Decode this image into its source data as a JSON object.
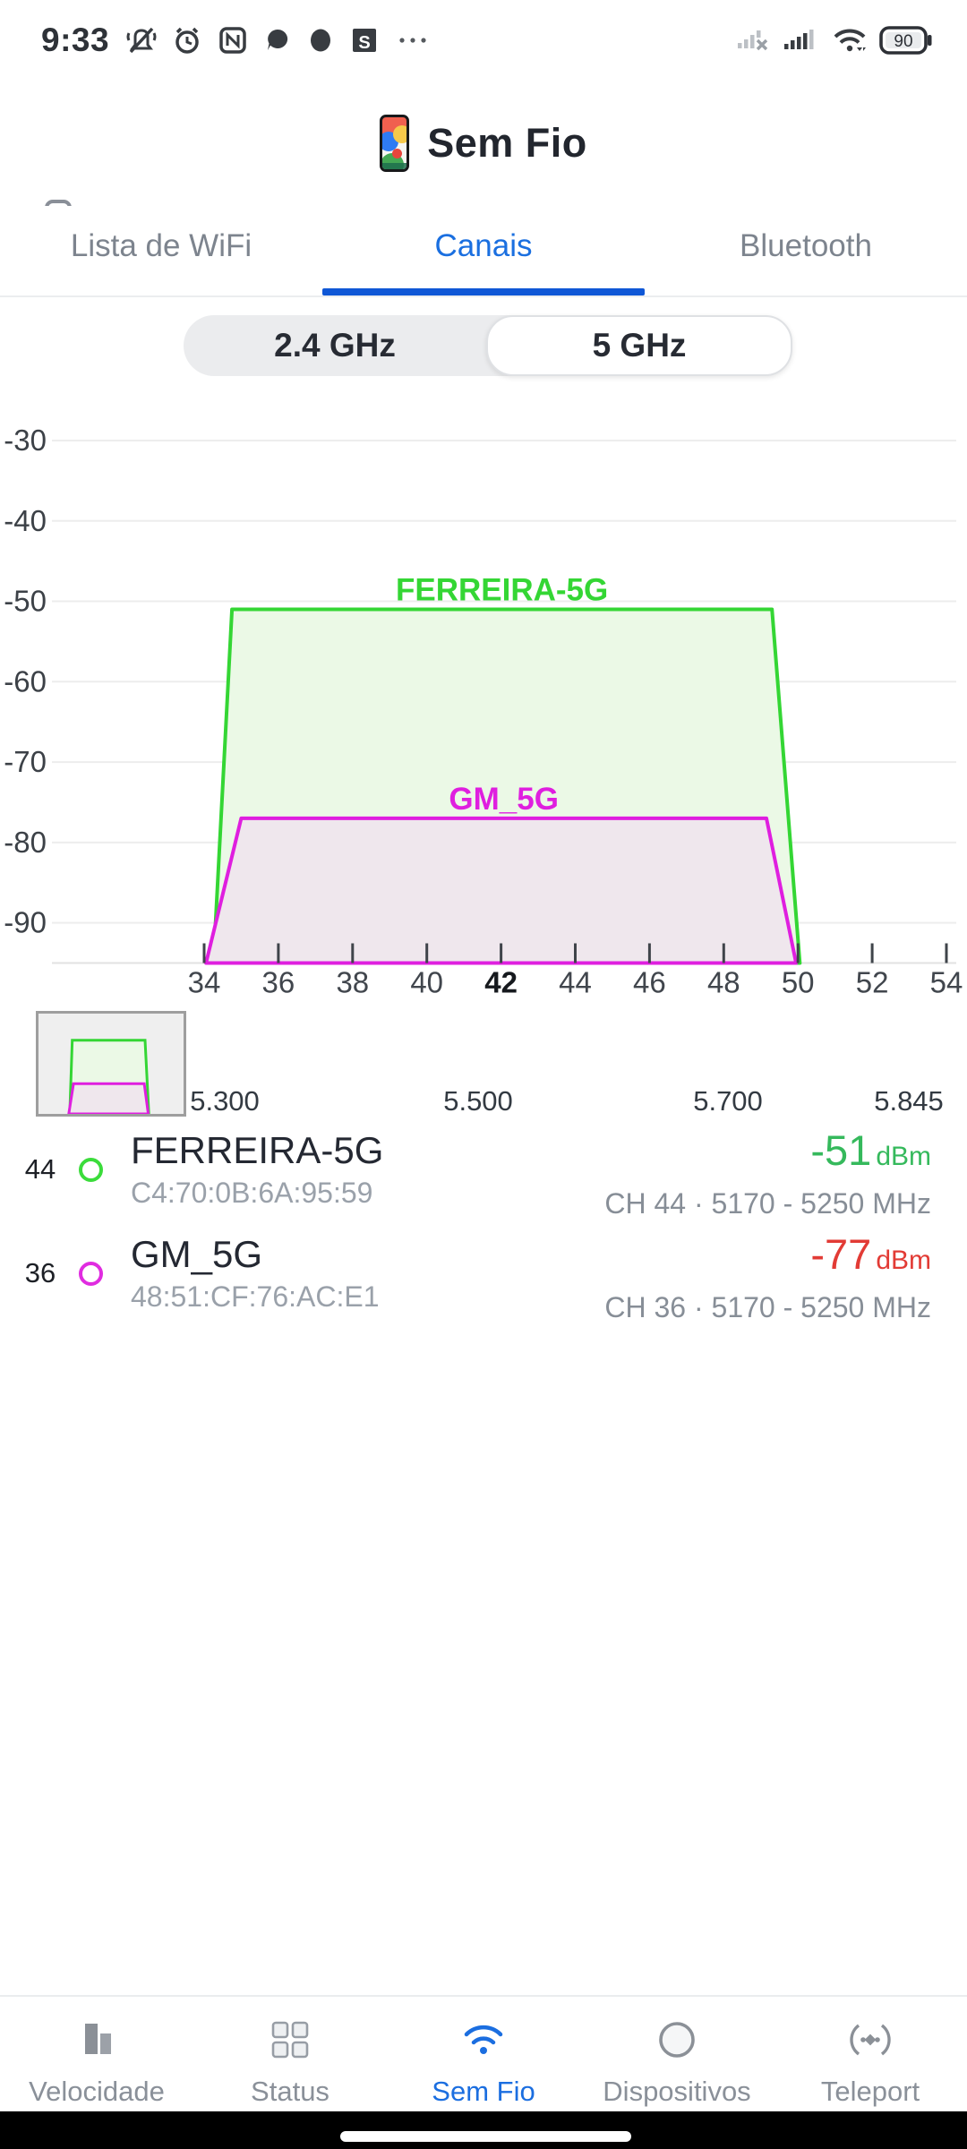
{
  "status_bar": {
    "time": "9:33",
    "battery_percent": "90",
    "left_icon_names": [
      "vibrate-off-icon",
      "alarm-icon",
      "nfc-icon",
      "chat-bubble-icon",
      "circle-badge-icon",
      "s-badge-icon",
      "more-dots-icon"
    ],
    "right_icon_names": [
      "signal-nosim-icon",
      "signal-icon",
      "wifi-status-icon",
      "battery-icon"
    ],
    "s_badge_letter": "S"
  },
  "header": {
    "title": "Sem Fio"
  },
  "tabs": {
    "items": [
      {
        "label": "Lista de WiFi",
        "active": false
      },
      {
        "label": "Canais",
        "active": true
      },
      {
        "label": "Bluetooth",
        "active": false
      }
    ]
  },
  "band_selector": {
    "options": [
      {
        "label": "2.4 GHz",
        "selected": false
      },
      {
        "label": "5 GHz",
        "selected": true
      }
    ]
  },
  "chart_data": {
    "type": "area",
    "title": "",
    "x_ticks": [
      34,
      36,
      38,
      40,
      42,
      44,
      46,
      48,
      50,
      52,
      54
    ],
    "bold_x_tick": 42,
    "y_ticks": [
      -30,
      -40,
      -50,
      -60,
      -70,
      -80,
      -90
    ],
    "ylim": [
      -95,
      -27
    ],
    "xlim": [
      30,
      54.5
    ],
    "grid": true,
    "legend": "inline-labels",
    "freq_axis_labels": [
      "5.300",
      "5.500",
      "5.700",
      "5.845"
    ],
    "series": [
      {
        "name": "FERREIRA-5G",
        "peak_dbm": -51,
        "channel_span": [
          34,
          50
        ],
        "color": "#34d634",
        "fill": "#ebf9e6",
        "points": [
          [
            34.25,
            -95
          ],
          [
            34.75,
            -51
          ],
          [
            49.3,
            -51
          ],
          [
            50.05,
            -95
          ]
        ]
      },
      {
        "name": "GM_5G",
        "peak_dbm": -77,
        "channel_span": [
          34,
          50
        ],
        "color": "#df1fdf",
        "fill": "#efe7ed",
        "points": [
          [
            34.05,
            -95
          ],
          [
            35.0,
            -77
          ],
          [
            49.15,
            -77
          ],
          [
            49.95,
            -95
          ]
        ]
      }
    ]
  },
  "networks": [
    {
      "channel": "44",
      "dot_color": "#3bdc3b",
      "ssid": "FERREIRA-5G",
      "mac": "C4:70:0B:6A:95:59",
      "signal": "-51",
      "signal_unit": "dBm",
      "signal_color": "#35b95c",
      "detail": "CH 44 · 5170 - 5250 MHz"
    },
    {
      "channel": "36",
      "dot_color": "#e02ce0",
      "ssid": "GM_5G",
      "mac": "48:51:CF:76:AC:E1",
      "signal": "-77",
      "signal_unit": "dBm",
      "signal_color": "#e23b35",
      "detail": "CH 36 · 5170 - 5250 MHz"
    }
  ],
  "bottom_nav": {
    "items": [
      {
        "label": "Velocidade",
        "icon": "speed-bars-icon",
        "active": false
      },
      {
        "label": "Status",
        "icon": "status-grid-icon",
        "active": false
      },
      {
        "label": "Sem Fio",
        "icon": "wifi-icon",
        "active": true
      },
      {
        "label": "Dispositivos",
        "icon": "devices-circle-icon",
        "active": false
      },
      {
        "label": "Teleport",
        "icon": "teleport-icon",
        "active": false
      }
    ]
  },
  "accent_colors": {
    "blue": "#1b6ee0",
    "green": "#34d634",
    "magenta": "#df1fdf",
    "red": "#e23b35"
  }
}
